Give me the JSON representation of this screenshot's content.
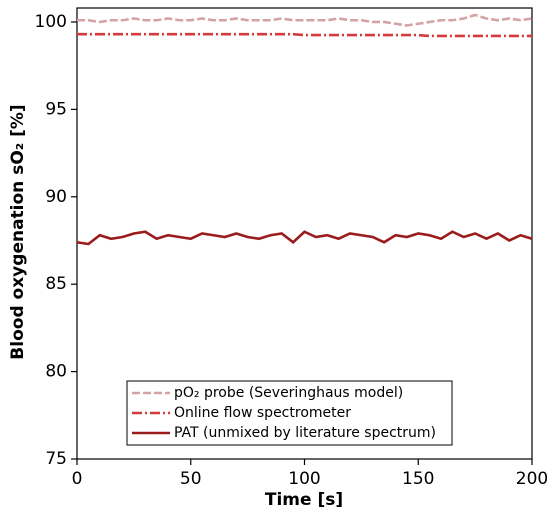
{
  "chart_data": {
    "type": "line",
    "xlabel": "Time [s]",
    "ylabel": "Blood oxygenation sO₂ [%]",
    "x": [
      0,
      5,
      10,
      15,
      20,
      25,
      30,
      35,
      40,
      45,
      50,
      55,
      60,
      65,
      70,
      75,
      80,
      85,
      90,
      95,
      100,
      105,
      110,
      115,
      120,
      125,
      130,
      135,
      140,
      145,
      150,
      155,
      160,
      165,
      170,
      175,
      180,
      185,
      190,
      195,
      200
    ],
    "series": [
      {
        "name": "pO₂ probe (Severinghaus model)",
        "color": "#d4a3a3",
        "dash": "8,3",
        "values": [
          100.1,
          100.1,
          100.0,
          100.1,
          100.1,
          100.2,
          100.1,
          100.1,
          100.2,
          100.1,
          100.1,
          100.2,
          100.1,
          100.1,
          100.2,
          100.1,
          100.1,
          100.1,
          100.2,
          100.1,
          100.1,
          100.1,
          100.1,
          100.2,
          100.1,
          100.1,
          100.0,
          100.0,
          99.9,
          99.8,
          99.9,
          100.0,
          100.1,
          100.1,
          100.2,
          100.4,
          100.2,
          100.1,
          100.2,
          100.1,
          100.2
        ]
      },
      {
        "name": "Online flow spectrometer",
        "color": "#d63a3a",
        "dash": "10,3,2,3",
        "values": [
          99.3,
          99.3,
          99.3,
          99.3,
          99.3,
          99.3,
          99.3,
          99.3,
          99.3,
          99.3,
          99.3,
          99.3,
          99.3,
          99.3,
          99.3,
          99.3,
          99.3,
          99.3,
          99.3,
          99.3,
          99.25,
          99.25,
          99.25,
          99.25,
          99.25,
          99.25,
          99.25,
          99.25,
          99.25,
          99.25,
          99.25,
          99.2,
          99.2,
          99.2,
          99.2,
          99.2,
          99.2,
          99.2,
          99.2,
          99.2,
          99.2
        ]
      },
      {
        "name": "PAT (unmixed by literature spectrum)",
        "color": "#9b1c1c",
        "dash": "",
        "values": [
          87.4,
          87.3,
          87.8,
          87.6,
          87.7,
          87.9,
          88.0,
          87.6,
          87.8,
          87.7,
          87.6,
          87.9,
          87.8,
          87.7,
          87.9,
          87.7,
          87.6,
          87.8,
          87.9,
          87.4,
          88.0,
          87.7,
          87.8,
          87.6,
          87.9,
          87.8,
          87.7,
          87.4,
          87.8,
          87.7,
          87.9,
          87.8,
          87.6,
          88.0,
          87.7,
          87.9,
          87.6,
          87.9,
          87.5,
          87.8,
          87.6
        ]
      }
    ],
    "xlim": [
      0,
      200
    ],
    "xticks": [
      0,
      50,
      100,
      150,
      200
    ],
    "ylim": [
      75,
      100.8
    ],
    "yticks": [
      75,
      80,
      85,
      90,
      95,
      100
    ],
    "legend": "lower center"
  }
}
